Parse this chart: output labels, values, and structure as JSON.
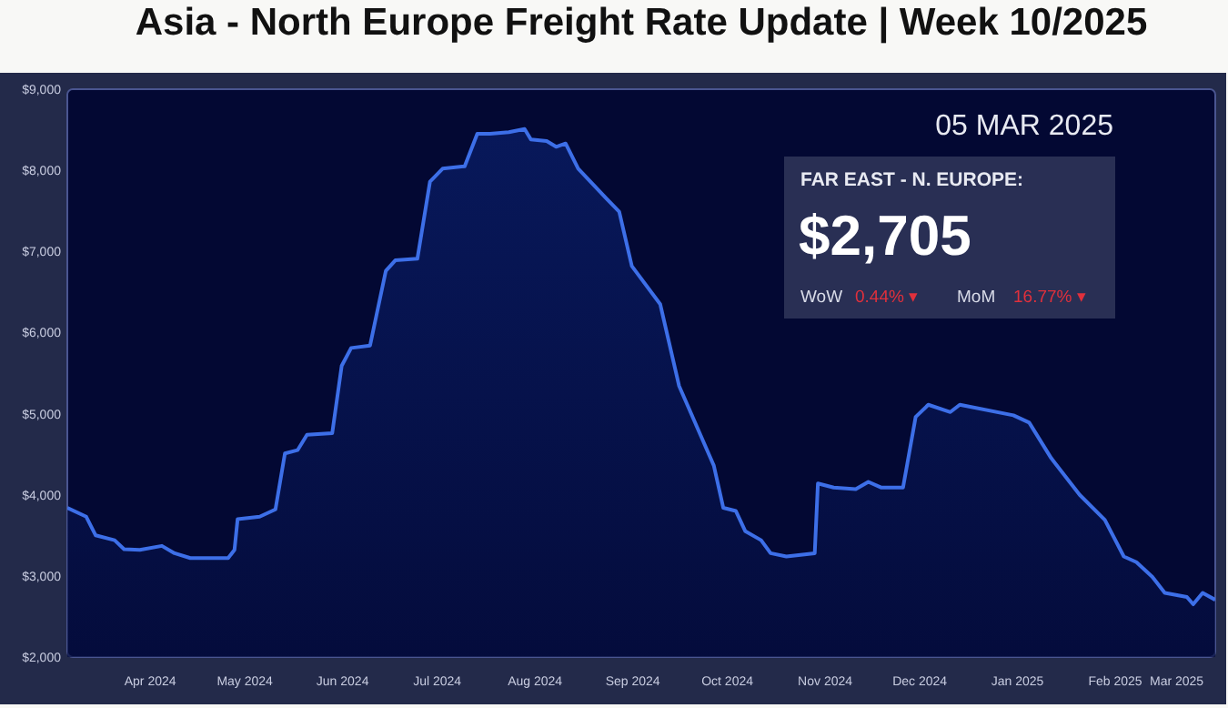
{
  "chart_data": {
    "type": "area",
    "title": "Asia - North Europe Freight Rate Update | Week 10/2025",
    "x": [
      "2024-03-06",
      "2024-03-12",
      "2024-03-15",
      "2024-03-21",
      "2024-03-24",
      "2024-03-29",
      "2024-04-05",
      "2024-04-09",
      "2024-04-14",
      "2024-04-26",
      "2024-04-28",
      "2024-04-29",
      "2024-05-06",
      "2024-05-11",
      "2024-05-14",
      "2024-05-18",
      "2024-05-21",
      "2024-05-29",
      "2024-06-01",
      "2024-06-04",
      "2024-06-10",
      "2024-06-15",
      "2024-06-18",
      "2024-06-25",
      "2024-06-29",
      "2024-07-03",
      "2024-07-10",
      "2024-07-14",
      "2024-07-18",
      "2024-07-24",
      "2024-07-29",
      "2024-07-31",
      "2024-08-05",
      "2024-08-08",
      "2024-08-11",
      "2024-08-15",
      "2024-08-24",
      "2024-08-28",
      "2024-09-01",
      "2024-09-10",
      "2024-09-16",
      "2024-09-27",
      "2024-09-30",
      "2024-10-04",
      "2024-10-07",
      "2024-10-12",
      "2024-10-15",
      "2024-10-20",
      "2024-10-29",
      "2024-10-30",
      "2024-11-04",
      "2024-11-11",
      "2024-11-15",
      "2024-11-19",
      "2024-11-26",
      "2024-11-30",
      "2024-12-04",
      "2024-12-11",
      "2024-12-14",
      "2024-12-31",
      "2025-01-05",
      "2025-01-12",
      "2025-01-21",
      "2025-01-29",
      "2025-02-04",
      "2025-02-08",
      "2025-02-13",
      "2025-02-17",
      "2025-02-24",
      "2025-02-26",
      "2025-03-01",
      "2025-03-05"
    ],
    "series": [
      {
        "color": "#3d6fe8",
        "values": [
          3840,
          3730,
          3500,
          3440,
          3330,
          3320,
          3370,
          3280,
          3220,
          3220,
          3320,
          3700,
          3730,
          3820,
          4510,
          4550,
          4740,
          4760,
          5590,
          5810,
          5840,
          6760,
          6890,
          6910,
          7860,
          8020,
          8050,
          8450,
          8450,
          8470,
          8510,
          8380,
          8360,
          8290,
          8330,
          8020,
          7650,
          7490,
          6820,
          6350,
          5340,
          4360,
          3840,
          3800,
          3550,
          3440,
          3280,
          3240,
          3280,
          4140,
          4090,
          4070,
          4160,
          4090,
          4090,
          4960,
          5110,
          5020,
          5110,
          4980,
          4890,
          4450,
          4000,
          3690,
          3240,
          3170,
          2990,
          2790,
          2740,
          2650,
          2790,
          2705
        ]
      }
    ],
    "xlim": [
      "2024-03-06",
      "2025-03-05"
    ],
    "xticks": [
      {
        "value": "2024-04-01",
        "label": "Apr 2024"
      },
      {
        "value": "2024-05-01",
        "label": "May 2024"
      },
      {
        "value": "2024-06-01",
        "label": "Jun 2024"
      },
      {
        "value": "2024-07-01",
        "label": "Jul 2024"
      },
      {
        "value": "2024-08-01",
        "label": "Aug 2024"
      },
      {
        "value": "2024-09-01",
        "label": "Sep 2024"
      },
      {
        "value": "2024-10-01",
        "label": "Oct 2024"
      },
      {
        "value": "2024-11-01",
        "label": "Nov 2024"
      },
      {
        "value": "2024-12-01",
        "label": "Dec 2024"
      },
      {
        "value": "2025-01-01",
        "label": "Jan 2025"
      },
      {
        "value": "2025-02-01",
        "label": "Feb 2025"
      },
      {
        "value": "2025-03-01",
        "label": "Mar 2025"
      }
    ],
    "ylim": [
      2000,
      9000
    ],
    "yticks": [
      {
        "value": 2000,
        "label": "$2,000"
      },
      {
        "value": 3000,
        "label": "$3,000"
      },
      {
        "value": 4000,
        "label": "$4,000"
      },
      {
        "value": 5000,
        "label": "$5,000"
      },
      {
        "value": 6000,
        "label": "$6,000"
      },
      {
        "value": 7000,
        "label": "$7,000"
      },
      {
        "value": 8000,
        "label": "$8,000"
      },
      {
        "value": 9000,
        "label": "$9,000"
      }
    ],
    "grid": false,
    "annotations": [
      "05 MAR 2025",
      "FAR EAST - N. EUROPE:",
      "$2,705",
      "WoW",
      "0.44% ▾",
      "MoM",
      "16.77% ▾"
    ]
  }
}
